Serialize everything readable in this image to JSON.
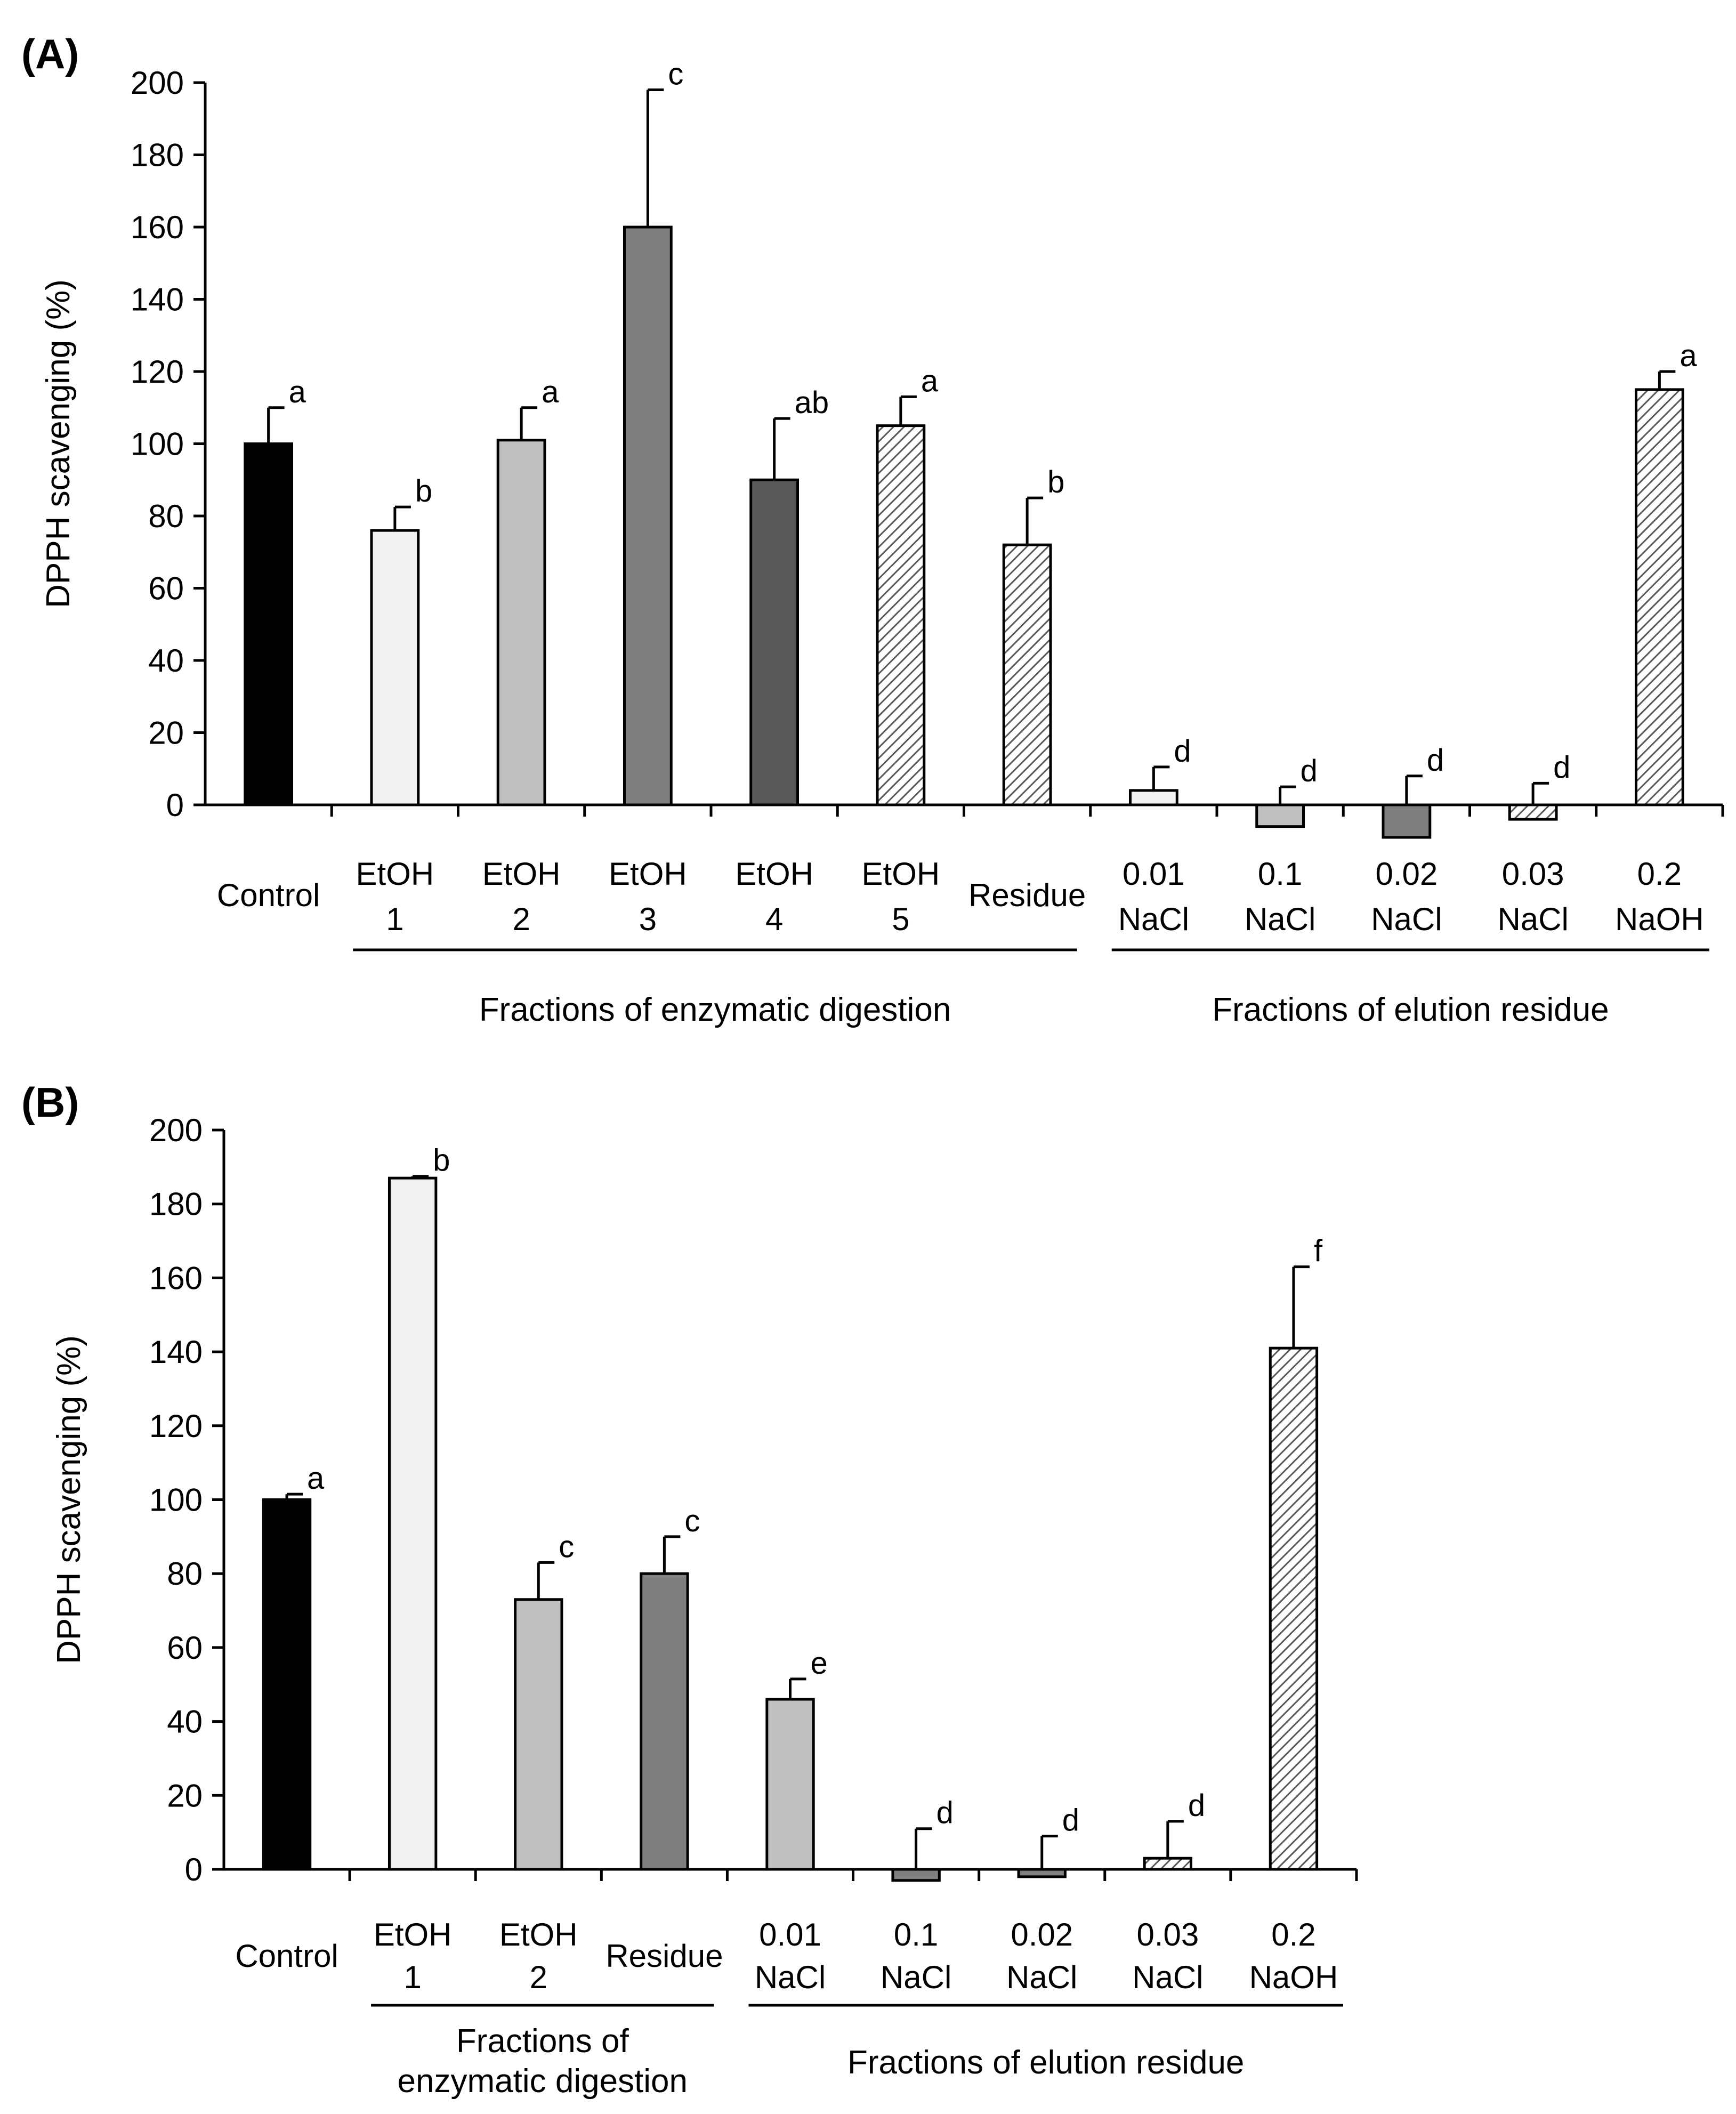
{
  "chart_data": [
    {
      "panel": "(A)",
      "type": "bar",
      "ylabel": "DPPH scavenging (%)",
      "xlabel": "",
      "ylim": [
        0,
        200
      ],
      "yticks": [
        0,
        20,
        40,
        60,
        80,
        100,
        120,
        140,
        160,
        180,
        200
      ],
      "grid": false,
      "categories": [
        {
          "line1": "Control",
          "line2": "",
          "value": 100,
          "error": 10,
          "label": "a",
          "fill": "black"
        },
        {
          "line1": "EtOH",
          "line2": "1",
          "value": 76,
          "error": 6.5,
          "label": "b",
          "fill": "light"
        },
        {
          "line1": "EtOH",
          "line2": "2",
          "value": 101,
          "error": 9,
          "label": "a",
          "fill": "mid"
        },
        {
          "line1": "EtOH",
          "line2": "3",
          "value": 160,
          "error": 38,
          "label": "c",
          "fill": "grey"
        },
        {
          "line1": "EtOH",
          "line2": "4",
          "value": 90,
          "error": 17,
          "label": "ab",
          "fill": "dark"
        },
        {
          "line1": "EtOH",
          "line2": "5",
          "value": 105,
          "error": 8,
          "label": "a",
          "fill": "hatch"
        },
        {
          "line1": "Residue",
          "line2": "",
          "value": 72,
          "error": 13,
          "label": "b",
          "fill": "hatch"
        },
        {
          "line1": "0.01",
          "line2": "NaCl",
          "value": 4,
          "error": 6.5,
          "label": "d",
          "fill": "light"
        },
        {
          "line1": "0.1",
          "line2": "NaCl",
          "value": -6,
          "error": 5,
          "label": "d",
          "fill": "mid"
        },
        {
          "line1": "0.02",
          "line2": "NaCl",
          "value": -9,
          "error": 8,
          "label": "d",
          "fill": "grey"
        },
        {
          "line1": "0.03",
          "line2": "NaCl",
          "value": -4,
          "error": 6,
          "label": "d",
          "fill": "hatch"
        },
        {
          "line1": "0.2",
          "line2": "NaOH",
          "value": 115,
          "error": 5,
          "label": "a",
          "fill": "hatch"
        }
      ],
      "groups": [
        {
          "label_lines": [
            "Fractions of enzymatic digestion"
          ],
          "from": 1,
          "to": 6
        },
        {
          "label_lines": [
            "Fractions of elution residue"
          ],
          "from": 7,
          "to": 11
        }
      ]
    },
    {
      "panel": "(B)",
      "type": "bar",
      "ylabel": "DPPH scavenging (%)",
      "xlabel": "",
      "ylim": [
        0,
        200
      ],
      "yticks": [
        0,
        20,
        40,
        60,
        80,
        100,
        120,
        140,
        160,
        180,
        200
      ],
      "grid": false,
      "categories": [
        {
          "line1": "Control",
          "line2": "",
          "value": 100,
          "error": 1.5,
          "label": "a",
          "fill": "black"
        },
        {
          "line1": "EtOH",
          "line2": "1",
          "value": 187,
          "error": 0.5,
          "label": "b",
          "fill": "light"
        },
        {
          "line1": "EtOH",
          "line2": "2",
          "value": 73,
          "error": 10,
          "label": "c",
          "fill": "mid"
        },
        {
          "line1": "Residue",
          "line2": "",
          "value": 80,
          "error": 10,
          "label": "c",
          "fill": "grey"
        },
        {
          "line1": "0.01",
          "line2": "NaCl",
          "value": 46,
          "error": 5.5,
          "label": "e",
          "fill": "mid"
        },
        {
          "line1": "0.1",
          "line2": "NaCl",
          "value": -3,
          "error": 11,
          "label": "d",
          "fill": "grey"
        },
        {
          "line1": "0.02",
          "line2": "NaCl",
          "value": -2,
          "error": 9,
          "label": "d",
          "fill": "grey"
        },
        {
          "line1": "0.03",
          "line2": "NaCl",
          "value": 3,
          "error": 10,
          "label": "d",
          "fill": "hatch"
        },
        {
          "line1": "0.2",
          "line2": "NaOH",
          "value": 141,
          "error": 22,
          "label": "f",
          "fill": "hatch"
        }
      ],
      "groups": [
        {
          "label_lines": [
            "Fractions of",
            "enzymatic digestion"
          ],
          "from": 1,
          "to": 3
        },
        {
          "label_lines": [
            "Fractions of elution residue"
          ],
          "from": 4,
          "to": 8
        }
      ]
    }
  ],
  "colors": {
    "black": "#000000",
    "light": "#f2f2f2",
    "mid": "#bfbfbf",
    "grey": "#7f7f7f",
    "dark": "#595959",
    "hatch_bg": "#ffffff",
    "hatch_line": "#595959"
  }
}
